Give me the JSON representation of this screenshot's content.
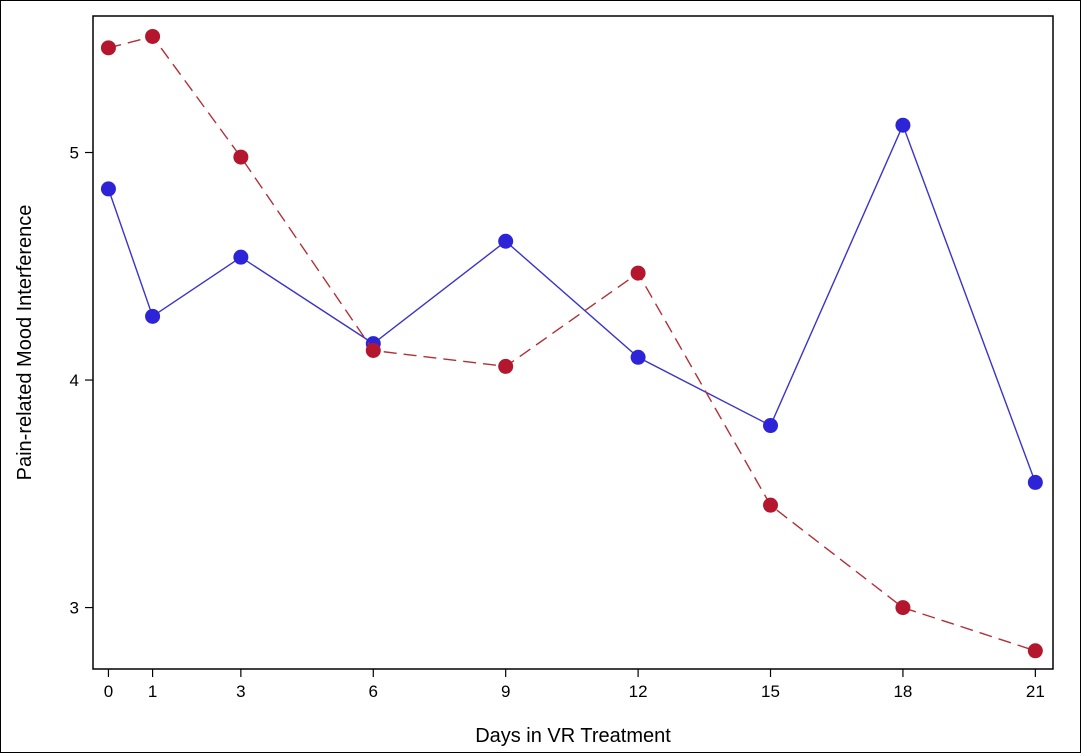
{
  "chart_data": {
    "type": "line",
    "xlabel": "Days in VR Treatment",
    "ylabel": "Pain-related Mood Interference",
    "x": [
      0,
      1,
      3,
      6,
      9,
      12,
      15,
      18,
      21
    ],
    "xticks": [
      "0",
      "1",
      "3",
      "6",
      "9",
      "12",
      "15",
      "18",
      "21"
    ],
    "yticks": [
      "3",
      "4",
      "5"
    ],
    "xlim": [
      -0.35,
      21.4
    ],
    "ylim": [
      2.73,
      5.6
    ],
    "grid": false,
    "legend": "none",
    "series": [
      {
        "values": [
          4.84,
          4.28,
          4.54,
          4.16,
          4.61,
          4.1,
          3.8,
          5.12,
          3.55
        ],
        "color": "#3a34c8",
        "dash": "solid",
        "marker_color": "#2c24d6"
      },
      {
        "values": [
          5.46,
          5.51,
          4.98,
          4.13,
          4.06,
          4.47,
          3.45,
          3.0,
          2.81
        ],
        "color": "#b03038",
        "dash": "dashed",
        "marker_color": "#b4172d"
      }
    ]
  }
}
